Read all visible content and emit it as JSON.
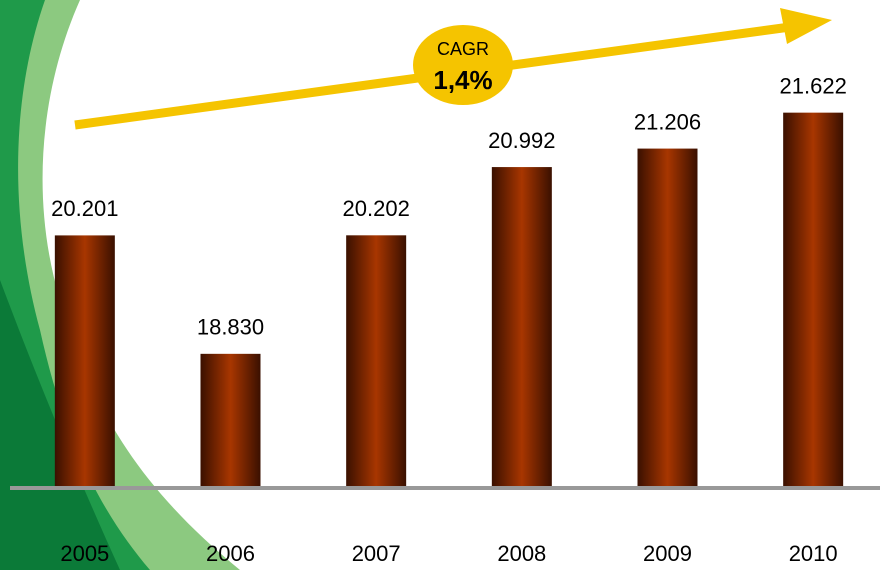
{
  "chart_data": {
    "type": "bar",
    "categories": [
      "2005",
      "2006",
      "2007",
      "2008",
      "2009",
      "2010"
    ],
    "values": [
      20201,
      18830,
      20202,
      20992,
      21206,
      21622
    ],
    "value_labels": [
      "20.201",
      "18.830",
      "20.202",
      "20.992",
      "21.206",
      "21.622"
    ],
    "color": "#9a3000",
    "ylim": [
      17300,
      22000
    ],
    "annotations": [
      "CAGR",
      "1,4%"
    ]
  }
}
